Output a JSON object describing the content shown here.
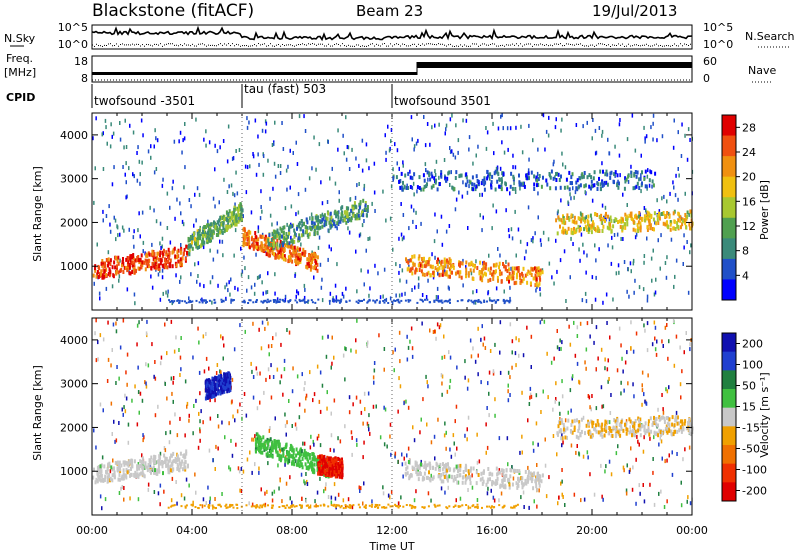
{
  "header": {
    "station": "Blackstone (fitACF)",
    "beam": "Beam 23",
    "date": "19/Jul/2013"
  },
  "summary_panel": {
    "left_top_label": "N.Sky",
    "left_freq_label_1": "Freq.",
    "left_freq_label_2": "[MHz]",
    "cpid_label": "CPID",
    "right_top_label": "N.Search",
    "right_nave_label": "Nave",
    "noise_tick_top": "10^5",
    "noise_tick_bottom": "10^0",
    "noise_tick_top_right": "10^5",
    "noise_tick_bottom_right": "10^0",
    "freq_tick_top": "18",
    "freq_tick_bottom": "8",
    "nave_tick_top": "60",
    "nave_tick_bottom": "0",
    "cpid_segments": [
      {
        "label": "twofsound -3501",
        "start_hour": 0,
        "end_hour": 6
      },
      {
        "label": "tau (fast) 503",
        "start_hour": 6,
        "end_hour": 12
      },
      {
        "label": "twofsound 3501",
        "start_hour": 12,
        "end_hour": 24
      }
    ]
  },
  "colors": {
    "power_scale": [
      "#0000ff",
      "#2050c8",
      "#3a8a7a",
      "#50a050",
      "#a8c830",
      "#f0c010",
      "#f09010",
      "#f05010",
      "#e00000"
    ],
    "velocity_scale": [
      "#1010b0",
      "#2040d0",
      "#208040",
      "#40c040",
      "#c8c8c8",
      "#f0a000",
      "#f07000",
      "#f03000",
      "#e00000"
    ]
  },
  "chart_data": [
    {
      "type": "heatmap",
      "title": "",
      "xlabel": "",
      "ylabel": "Slant Range [km]",
      "xlim": [
        0,
        24
      ],
      "ylim": [
        0,
        4500
      ],
      "y_ticks": [
        "1000",
        "2000",
        "3000",
        "4000"
      ],
      "x_ticks": [
        "00:00",
        "04:00",
        "08:00",
        "12:00",
        "16:00",
        "20:00",
        "00:00"
      ],
      "colorbar": {
        "label": "Power [dB]",
        "ticks": [
          "4",
          "8",
          "12",
          "16",
          "20",
          "24",
          "28"
        ],
        "range": [
          0,
          30
        ]
      },
      "features": [
        {
          "start_hour": 0.0,
          "end_hour": 3.8,
          "start_range_km": 950,
          "end_range_km": 1300,
          "value": 26
        },
        {
          "start_hour": 3.8,
          "end_hour": 6.0,
          "start_range_km": 1500,
          "end_range_km": 2300,
          "value": 12
        },
        {
          "start_hour": 6.0,
          "end_hour": 9.0,
          "start_range_km": 1700,
          "end_range_km": 1100,
          "value": 24
        },
        {
          "start_hour": 7.0,
          "end_hour": 11.0,
          "start_range_km": 1600,
          "end_range_km": 2400,
          "value": 10
        },
        {
          "start_hour": 12.5,
          "end_hour": 18.0,
          "start_range_km": 1100,
          "end_range_km": 800,
          "value": 22
        },
        {
          "start_hour": 18.5,
          "end_hour": 24.0,
          "start_range_km": 2000,
          "end_range_km": 2100,
          "value": 18
        },
        {
          "start_hour": 12.0,
          "end_hour": 22.5,
          "start_range_km": 3000,
          "end_range_km": 3000,
          "value": 6
        }
      ]
    },
    {
      "type": "heatmap",
      "title": "",
      "xlabel": "Time UT",
      "ylabel": "Slant Range [km]",
      "xlim": [
        0,
        24
      ],
      "ylim": [
        0,
        4500
      ],
      "y_ticks": [
        "1000",
        "2000",
        "3000",
        "4000"
      ],
      "x_ticks": [
        "00:00",
        "04:00",
        "08:00",
        "12:00",
        "16:00",
        "20:00",
        "00:00"
      ],
      "colorbar": {
        "label": "Velocity [m s⁻¹]",
        "ticks": [
          "200",
          "100",
          "50",
          "15",
          "-15",
          "-50",
          "-100",
          "-200"
        ],
        "range": [
          -250,
          250
        ]
      },
      "features": [
        {
          "start_hour": 0.0,
          "end_hour": 3.8,
          "start_range_km": 950,
          "end_range_km": 1300,
          "value": 0
        },
        {
          "start_hour": 4.5,
          "end_hour": 5.5,
          "start_range_km": 2900,
          "end_range_km": 3100,
          "value": 200
        },
        {
          "start_hour": 6.5,
          "end_hour": 9.5,
          "start_range_km": 1700,
          "end_range_km": 1100,
          "value": 60
        },
        {
          "start_hour": 9.0,
          "end_hour": 10.0,
          "start_range_km": 1200,
          "end_range_km": 1100,
          "value": -200
        },
        {
          "start_hour": 12.5,
          "end_hour": 18.0,
          "start_range_km": 1100,
          "end_range_km": 800,
          "value": 0
        },
        {
          "start_hour": 18.5,
          "end_hour": 24.0,
          "start_range_km": 2000,
          "end_range_km": 2100,
          "value": -20
        }
      ]
    }
  ]
}
